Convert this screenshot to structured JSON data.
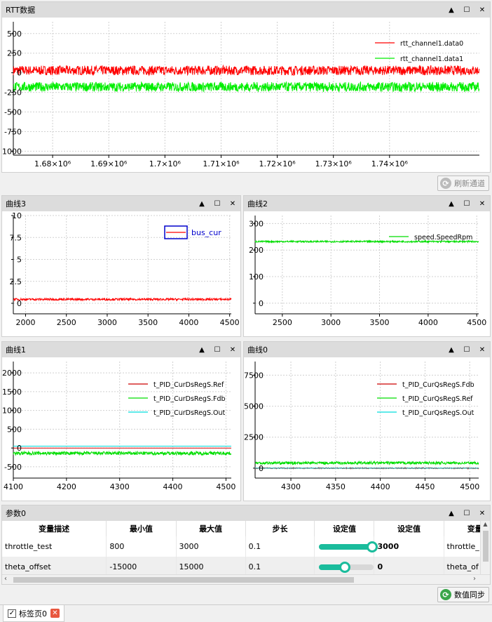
{
  "window_controls": {
    "up": "▲",
    "max": "☐",
    "close": "✕"
  },
  "panels": [
    {
      "key": "rtt",
      "title": "RTT数据",
      "chart": {
        "type": "line",
        "xlim": [
          1673000,
          1756000
        ],
        "ylim": [
          -1050,
          650
        ],
        "x_ticks": [
          "1.68×10⁶",
          "1.69×10⁶",
          "1.7×10⁶",
          "1.71×10⁶",
          "1.72×10⁶",
          "1.73×10⁶",
          "1.74×10⁶"
        ],
        "x_tick_values": [
          1680000,
          1690000,
          1700000,
          1710000,
          1720000,
          1730000,
          1740000
        ],
        "y_ticks": [
          "500",
          "250",
          "0",
          "-250",
          "-500",
          "-750",
          "-1000"
        ],
        "y_tick_values": [
          500,
          250,
          0,
          -250,
          -500,
          -750,
          -1000
        ],
        "series": [
          {
            "name": "rtt_channel1.data0",
            "color": "#ff0000",
            "center": 30,
            "amp": 60
          },
          {
            "name": "rtt_channel1.data1",
            "color": "#00ee00",
            "center": -180,
            "amp": 60
          }
        ]
      }
    },
    {
      "key": "c3",
      "title": "曲线3",
      "chart": {
        "type": "line",
        "xlim": [
          1850,
          4520
        ],
        "ylim": [
          -1.2,
          10
        ],
        "x_ticks": [
          "2000",
          "2500",
          "3000",
          "3500",
          "4000",
          "4500"
        ],
        "x_tick_values": [
          2000,
          2500,
          3000,
          3500,
          4000,
          4500
        ],
        "y_ticks": [
          "10",
          "7.5",
          "5",
          "2.5",
          "0"
        ],
        "y_tick_values": [
          10,
          7.5,
          5,
          2.5,
          0
        ],
        "series": [
          {
            "name": "bus_cur",
            "color": "#ff0000",
            "center": 0.45,
            "amp": 0.12
          }
        ]
      }
    },
    {
      "key": "c2",
      "title": "曲线2",
      "chart": {
        "type": "line",
        "xlim": [
          2220,
          4520
        ],
        "ylim": [
          -40,
          330
        ],
        "x_ticks": [
          "2500",
          "3000",
          "3500",
          "4000",
          "4500"
        ],
        "x_tick_values": [
          2500,
          3000,
          3500,
          4000,
          4500
        ],
        "y_ticks": [
          "300",
          "200",
          "100",
          "0"
        ],
        "y_tick_values": [
          300,
          200,
          100,
          0
        ],
        "series": [
          {
            "name": "speed.SpeedRpm",
            "color": "#00dd00",
            "center": 232,
            "amp": 3
          }
        ]
      }
    },
    {
      "key": "c1",
      "title": "曲线1",
      "chart": {
        "type": "line",
        "xlim": [
          4100,
          4510
        ],
        "ylim": [
          -800,
          2300
        ],
        "x_ticks": [
          "4100",
          "4200",
          "4300",
          "4400",
          "4500"
        ],
        "x_tick_values": [
          4100,
          4200,
          4300,
          4400,
          4500
        ],
        "y_ticks": [
          "2000",
          "1500",
          "1000",
          "500",
          "0",
          "-500"
        ],
        "y_tick_values": [
          2000,
          1500,
          1000,
          500,
          0,
          -500
        ],
        "series": [
          {
            "name": "t_PID_CurDsRegS.Ref",
            "color": "#cc0000",
            "center": 0,
            "amp": 0
          },
          {
            "name": "t_PID_CurDsRegS.Fdb",
            "color": "#00dd00",
            "center": -140,
            "amp": 45
          },
          {
            "name": "t_PID_CurDsRegS.Out",
            "color": "#00dddd",
            "center": 50,
            "amp": 0
          }
        ]
      }
    },
    {
      "key": "c0",
      "title": "曲线0",
      "chart": {
        "type": "line",
        "xlim": [
          4260,
          4510
        ],
        "ylim": [
          -800,
          8600
        ],
        "x_ticks": [
          "4300",
          "4350",
          "4400",
          "4450",
          "4500"
        ],
        "x_tick_values": [
          4300,
          4350,
          4400,
          4450,
          4500
        ],
        "y_ticks": [
          "7500",
          "5000",
          "2500",
          "0"
        ],
        "y_tick_values": [
          7500,
          5000,
          2500,
          0
        ],
        "series": [
          {
            "name": "t_PID_CurQsRegS.Fdb",
            "color": "#cc0000",
            "center": 0,
            "amp": 40
          },
          {
            "name": "t_PID_CurQsRegS.Ref",
            "color": "#00dd00",
            "center": 420,
            "amp": 110
          },
          {
            "name": "t_PID_CurQsRegS.Out",
            "color": "#00dddd",
            "center": 0,
            "amp": 0
          }
        ]
      }
    }
  ],
  "refresh_button": "刷新通道",
  "params": {
    "title": "参数0",
    "columns": [
      "变量描述",
      "最小值",
      "最大值",
      "步长",
      "设定值",
      "设定值",
      "变量"
    ],
    "rows": [
      {
        "name": "throttle_test",
        "min": "800",
        "max": "3000",
        "step": "0.1",
        "slider": 1.0,
        "value": "3000",
        "var": "throttle_"
      },
      {
        "name": "theta_offset",
        "min": "-15000",
        "max": "15000",
        "step": "0.1",
        "slider": 0.5,
        "value": "0",
        "var": "theta_of"
      }
    ]
  },
  "sync_button": "数值同步",
  "tab": {
    "label": "标签页0",
    "check": "✓",
    "close": "✕"
  }
}
